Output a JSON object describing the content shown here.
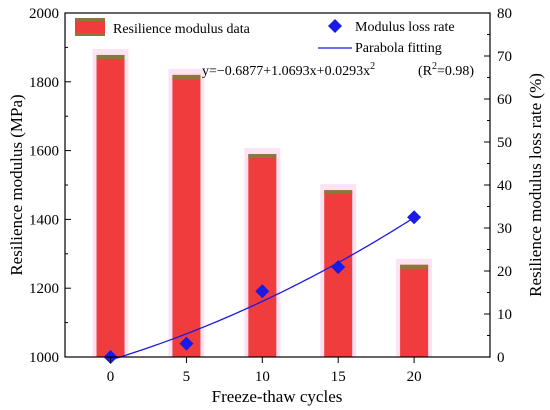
{
  "chart_data": {
    "type": "bar",
    "xlabel": "Freeze-thaw cycles",
    "ylabel_left": "Resilience modulus (MPa)",
    "ylabel_right": "Resilience modulus loss rate (%)",
    "categories": [
      "0",
      "5",
      "10",
      "15",
      "20"
    ],
    "x_values": [
      0,
      5,
      10,
      15,
      20
    ],
    "xlim": [
      -3,
      25
    ],
    "ylim_left": [
      1000,
      2000
    ],
    "ylim_right": [
      0,
      80
    ],
    "y_ticks_left": [
      "1000",
      "1200",
      "1400",
      "1600",
      "1800",
      "2000"
    ],
    "y_ticks_right": [
      "0",
      "10",
      "20",
      "30",
      "40",
      "50",
      "60",
      "70",
      "80"
    ],
    "series": [
      {
        "name": "Resilience modulus data",
        "kind": "bar",
        "axis": "left",
        "values": [
          1878,
          1820,
          1590,
          1485,
          1268
        ],
        "color": "#f03c3c",
        "cap_color": "#8a7a3a"
      },
      {
        "name": "Modulus loss rate",
        "kind": "scatter",
        "axis": "right",
        "values": [
          0,
          3.1,
          15.3,
          20.9,
          32.5
        ],
        "color": "#1a1ae6"
      },
      {
        "name": "Parabola fitting",
        "kind": "line",
        "axis": "right",
        "color": "#1a1ae6"
      }
    ],
    "fit_equation": {
      "prefix": "y=−0.6877+1.0693x+0.0293x",
      "exponent": "2",
      "r2_prefix": "(R",
      "r2_exp": "2",
      "r2_suffix": "=0.98)",
      "coefficients": [
        -0.6877,
        1.0693,
        0.0293
      ]
    },
    "legend_position": "top",
    "grid": false
  }
}
